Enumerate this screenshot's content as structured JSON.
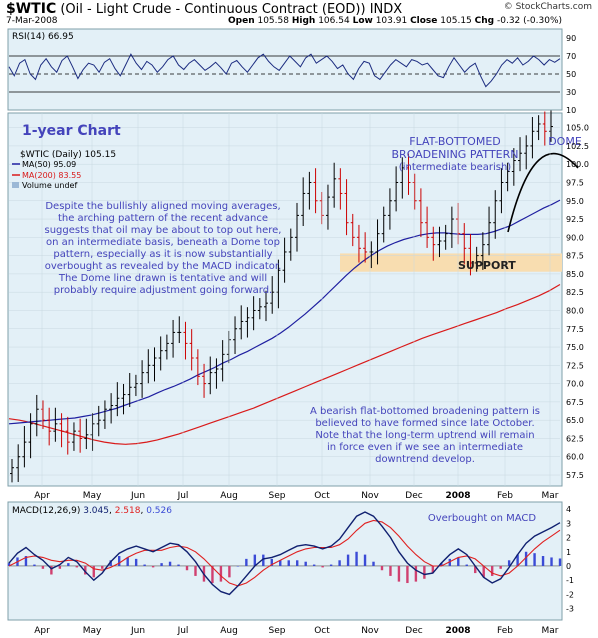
{
  "header": {
    "symbol": "$WTIC",
    "title_rest": "(Oil - Light Crude - Continuous Contract (EOD))",
    "exchange": "INDX",
    "date": "7-Mar-2008",
    "open_label": "Open",
    "open": "105.58",
    "high_label": "High",
    "high": "106.54",
    "low_label": "Low",
    "low": "103.91",
    "close_label": "Close",
    "close": "105.15",
    "chg_label": "Chg",
    "chg": "-0.32 (-0.30%)",
    "watermark": "© StockCharts.com"
  },
  "colors": {
    "panel_bg": "#e3f0f7",
    "price_up": "#000000",
    "price_down": "#cc0000",
    "ma50": "#1f1fa0",
    "ma200": "#d91a1a",
    "annotation": "#4444bb",
    "support_band": "#f8ddb0",
    "macd_line": "#102070",
    "signal_line": "#e02020",
    "hist_up": "#3b4bd6",
    "hist_down": "#d04070"
  },
  "chart_data": [
    {
      "type": "line",
      "name": "rsi_panel",
      "legend": "RSI(14) 66.95",
      "ylim": [
        10,
        100
      ],
      "yticks": [
        10,
        30,
        50,
        70,
        90
      ],
      "reference_lines": [
        30,
        50,
        70
      ],
      "series": [
        {
          "values": [
            58,
            48,
            62,
            66,
            50,
            44,
            60,
            67,
            58,
            52,
            65,
            70,
            58,
            45,
            55,
            62,
            60,
            52,
            63,
            67,
            56,
            48,
            60,
            72,
            62,
            55,
            64,
            60,
            52,
            58,
            66,
            70,
            60,
            55,
            62,
            66,
            60,
            54,
            58,
            63,
            57,
            50,
            62,
            65,
            58,
            52,
            60,
            68,
            72,
            64,
            58,
            54,
            62,
            70,
            64,
            58,
            68,
            72,
            62,
            66,
            70,
            64,
            56,
            60,
            50,
            44,
            56,
            64,
            62,
            48,
            44,
            52,
            60,
            66,
            62,
            58,
            66,
            64,
            60,
            62,
            55,
            48,
            46,
            58,
            68,
            60,
            52,
            58,
            62,
            48,
            36,
            42,
            50,
            60,
            66,
            62,
            68,
            60,
            64,
            70,
            66,
            60,
            66,
            63,
            67
          ]
        }
      ]
    },
    {
      "type": "candlestick",
      "name": "price_panel",
      "title": "1-year Chart",
      "legend": [
        "$WTIC (Daily) 105.15",
        "MA(50) 95.09",
        "MA(200) 83.55",
        "Volume undef"
      ],
      "ylim": [
        56,
        107
      ],
      "yticks": [
        57.5,
        60.0,
        62.5,
        65.0,
        67.5,
        70.0,
        72.5,
        75.0,
        77.5,
        80.0,
        82.5,
        85.0,
        87.5,
        90.0,
        92.5,
        95.0,
        97.5,
        100.0,
        102.5,
        105.0
      ],
      "xticks": [
        "Apr",
        "May",
        "Jun",
        "Jul",
        "Aug",
        "Sep",
        "Oct",
        "Nov",
        "Dec",
        "2008",
        "Feb",
        "Mar"
      ],
      "close": [
        58.5,
        60.0,
        62.0,
        64.5,
        66.5,
        65.0,
        63.5,
        64.5,
        63.5,
        62.0,
        63.5,
        62.5,
        63.0,
        64.5,
        65.0,
        66.5,
        67.0,
        68.0,
        68.5,
        69.5,
        70.0,
        71.5,
        72.5,
        73.5,
        74.5,
        75.5,
        77.0,
        77.0,
        75.5,
        73.5,
        71.0,
        70.0,
        71.5,
        72.0,
        74.0,
        76.0,
        77.5,
        78.5,
        79.0,
        80.0,
        80.5,
        81.0,
        82.5,
        85.5,
        88.0,
        90.0,
        93.0,
        96.0,
        97.5,
        95.0,
        93.0,
        95.5,
        98.0,
        96.0,
        92.0,
        90.0,
        88.5,
        88.0,
        88.0,
        90.5,
        93.0,
        95.0,
        97.5,
        99.5,
        97.5,
        95.0,
        92.0,
        90.0,
        89.0,
        89.5,
        90.5,
        92.5,
        90.5,
        88.5,
        86.5,
        87.5,
        89.0,
        92.0,
        95.0,
        97.5,
        99.0,
        100.5,
        101.5,
        102.5,
        104.5,
        105.5,
        104.5,
        105.15
      ],
      "ma50": [
        64.5,
        64.6,
        64.7,
        64.8,
        64.9,
        65.0,
        65.1,
        65.2,
        65.3,
        65.5,
        65.7,
        66.0,
        66.3,
        66.6,
        67.0,
        67.4,
        67.8,
        68.2,
        68.7,
        69.2,
        69.6,
        70.1,
        70.6,
        71.2,
        71.7,
        72.2,
        72.8,
        73.3,
        73.9,
        74.4,
        75.0,
        75.6,
        76.2,
        76.9,
        77.7,
        78.6,
        79.5,
        80.5,
        81.5,
        82.6,
        83.7,
        84.8,
        85.8,
        86.7,
        87.5,
        88.2,
        88.8,
        89.3,
        89.7,
        90.0,
        90.3,
        90.5,
        90.6,
        90.6,
        90.5,
        90.4,
        90.4,
        90.4,
        90.5,
        90.8,
        91.2,
        91.6,
        92.2,
        92.8,
        93.4,
        94.0,
        94.5,
        95.09
      ],
      "ma200": [
        65.2,
        65.0,
        64.7,
        64.3,
        63.9,
        63.5,
        63.1,
        62.7,
        62.3,
        62.0,
        61.8,
        61.7,
        61.8,
        62.0,
        62.3,
        62.7,
        63.1,
        63.6,
        64.1,
        64.6,
        65.1,
        65.6,
        66.1,
        66.6,
        67.2,
        67.8,
        68.4,
        69.0,
        69.6,
        70.2,
        70.8,
        71.4,
        72.0,
        72.6,
        73.2,
        73.8,
        74.4,
        75.0,
        75.6,
        76.2,
        76.7,
        77.2,
        77.7,
        78.2,
        78.7,
        79.2,
        79.7,
        80.3,
        80.8,
        81.4,
        82.0,
        82.7,
        83.55
      ],
      "support_band": [
        85.3,
        87.8
      ]
    },
    {
      "type": "line",
      "name": "macd_panel",
      "legend": "MACD(12,26,9) 3.045, 2.518, 0.526",
      "ylim": [
        -3.8,
        4.5
      ],
      "yticks": [
        -3,
        -2,
        -1,
        0,
        1,
        2,
        3,
        4
      ],
      "series": [
        {
          "name": "MACD",
          "values": [
            0.2,
            0.9,
            1.3,
            0.8,
            0.4,
            -0.2,
            0.1,
            0.6,
            0.3,
            -0.4,
            -1.0,
            -0.5,
            0.3,
            0.9,
            1.2,
            1.4,
            1.2,
            1.0,
            1.3,
            1.6,
            1.5,
            1.0,
            0.3,
            -0.6,
            -1.3,
            -1.8,
            -2.0,
            -1.4,
            -0.7,
            0.0,
            0.5,
            0.6,
            0.8,
            1.1,
            1.4,
            1.5,
            1.4,
            1.2,
            1.4,
            1.9,
            2.7,
            3.5,
            3.8,
            3.5,
            2.8,
            2.0,
            1.0,
            0.2,
            -0.3,
            -0.6,
            -0.5,
            0.2,
            0.8,
            1.2,
            0.8,
            0.0,
            -0.8,
            -1.2,
            -0.9,
            -0.1,
            0.8,
            1.6,
            2.1,
            2.4,
            2.7,
            3.045
          ]
        },
        {
          "name": "Signal",
          "values": [
            0.0,
            0.3,
            0.6,
            0.7,
            0.6,
            0.4,
            0.3,
            0.4,
            0.4,
            0.2,
            -0.2,
            -0.3,
            -0.1,
            0.2,
            0.6,
            0.9,
            1.1,
            1.1,
            1.1,
            1.3,
            1.4,
            1.3,
            1.0,
            0.5,
            -0.1,
            -0.7,
            -1.2,
            -1.4,
            -1.2,
            -0.8,
            -0.3,
            0.1,
            0.4,
            0.7,
            1.0,
            1.2,
            1.3,
            1.3,
            1.3,
            1.5,
            1.9,
            2.5,
            3.0,
            3.2,
            3.1,
            2.7,
            2.1,
            1.4,
            0.8,
            0.3,
            0.0,
            0.0,
            0.3,
            0.6,
            0.7,
            0.5,
            0.0,
            -0.5,
            -0.7,
            -0.5,
            0.0,
            0.6,
            1.2,
            1.7,
            2.1,
            2.518
          ]
        }
      ],
      "xticks": [
        "Apr",
        "May",
        "Jun",
        "Jul",
        "Aug",
        "Sep",
        "Oct",
        "Nov",
        "Dec",
        "2008",
        "Feb",
        "Mar"
      ]
    }
  ],
  "annotations": {
    "chart_label": "1-year Chart",
    "flat_bottomed_1": "FLAT-BOTTOMED",
    "flat_bottomed_2": "BROADENING PATTERN",
    "flat_bottomed_3": "(intermediate bearish)",
    "dome": "DOME",
    "support": "SUPPORT",
    "left_text": [
      "Despite the bullishly aligned moving averages,",
      "the arching pattern of the recent advance",
      "suggests that oil may be about to top out here,",
      "on an intermediate basis, beneath a Dome top",
      "pattern, especially as it is now substantially",
      "overbought as revealed by the MACD indicator.",
      "The Dome line drawn is tentative and will",
      "probably require adjustment going forward."
    ],
    "right_text": [
      "A bearish flat-bottomed broadening pattern is",
      "believed to have formed since late October.",
      "Note that the long-term uptrend will remain",
      "in force even if we see an intermediate",
      "downtrend develop."
    ],
    "macd_note": "Overbought on MACD"
  }
}
